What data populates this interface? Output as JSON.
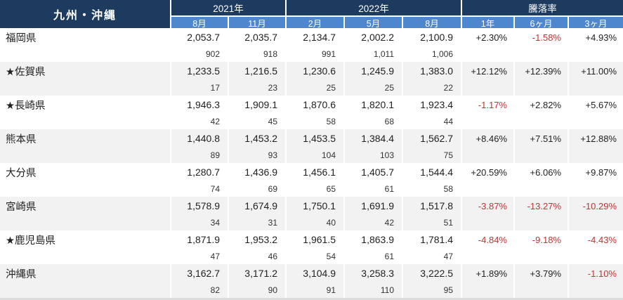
{
  "table": {
    "region_title": "九州・沖縄",
    "year_groups": [
      {
        "label": "2021年",
        "span": 2
      },
      {
        "label": "2022年",
        "span": 3
      },
      {
        "label": "騰落率",
        "span": 3
      }
    ],
    "month_headers": [
      "8月",
      "11月",
      "2月",
      "5月",
      "8月",
      "1年",
      "6ヶ月",
      "3ヶ月"
    ],
    "rows": [
      {
        "name": "福岡県",
        "values": [
          "2,053.7",
          "2,035.7",
          "2,134.7",
          "2,002.2",
          "2,100.9"
        ],
        "counts": [
          "902",
          "918",
          "991",
          "1,011",
          "1,006"
        ],
        "rates": [
          "+2.30%",
          "-1.58%",
          "+4.93%"
        ]
      },
      {
        "name": "★佐賀県",
        "values": [
          "1,233.5",
          "1,216.5",
          "1,230.6",
          "1,245.9",
          "1,383.0"
        ],
        "counts": [
          "17",
          "23",
          "25",
          "25",
          "22"
        ],
        "rates": [
          "+12.12%",
          "+12.39%",
          "+11.00%"
        ]
      },
      {
        "name": "★長崎県",
        "values": [
          "1,946.3",
          "1,909.1",
          "1,870.6",
          "1,820.1",
          "1,923.4"
        ],
        "counts": [
          "42",
          "45",
          "58",
          "68",
          "44"
        ],
        "rates": [
          "-1.17%",
          "+2.82%",
          "+5.67%"
        ]
      },
      {
        "name": "熊本県",
        "values": [
          "1,440.8",
          "1,453.2",
          "1,453.5",
          "1,384.4",
          "1,562.7"
        ],
        "counts": [
          "89",
          "93",
          "104",
          "103",
          "75"
        ],
        "rates": [
          "+8.46%",
          "+7.51%",
          "+12.88%"
        ]
      },
      {
        "name": "大分県",
        "values": [
          "1,280.7",
          "1,436.9",
          "1,456.1",
          "1,405.7",
          "1,544.4"
        ],
        "counts": [
          "74",
          "69",
          "65",
          "61",
          "58"
        ],
        "rates": [
          "+20.59%",
          "+6.06%",
          "+9.87%"
        ]
      },
      {
        "name": "宮崎県",
        "values": [
          "1,578.9",
          "1,674.9",
          "1,750.1",
          "1,691.9",
          "1,517.8"
        ],
        "counts": [
          "34",
          "31",
          "40",
          "42",
          "51"
        ],
        "rates": [
          "-3.87%",
          "-13.27%",
          "-10.29%"
        ]
      },
      {
        "name": "★鹿児島県",
        "values": [
          "1,871.9",
          "1,953.2",
          "1,961.5",
          "1,863.9",
          "1,781.4"
        ],
        "counts": [
          "47",
          "46",
          "54",
          "61",
          "47"
        ],
        "rates": [
          "-4.84%",
          "-9.18%",
          "-4.43%"
        ]
      },
      {
        "name": "沖縄県",
        "values": [
          "3,162.7",
          "3,171.2",
          "3,104.9",
          "3,258.3",
          "3,222.5"
        ],
        "counts": [
          "82",
          "90",
          "91",
          "110",
          "95"
        ],
        "rates": [
          "+1.89%",
          "+3.79%",
          "-1.10%"
        ]
      }
    ]
  },
  "colors": {
    "header_navy": "#1d3a5f",
    "subheader_blue": "#4e87ce",
    "row_shade": "#f2f2f2",
    "negative_red": "#bf3434",
    "text": "#1f1f1f"
  }
}
